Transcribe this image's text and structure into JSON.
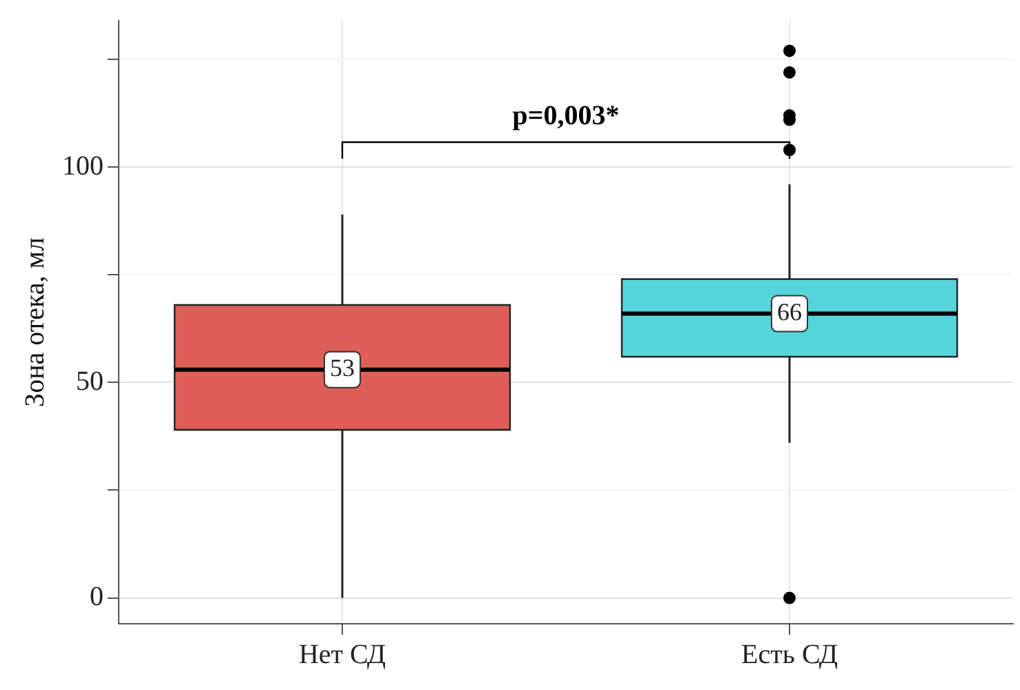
{
  "chart_data": {
    "type": "box",
    "ylabel": "Зона отека, мл",
    "categories": [
      "Нет СД",
      "Есть СД"
    ],
    "colors": [
      "#dd5f57",
      "#56d4dc"
    ],
    "boxes": [
      {
        "low": 0,
        "q1": 39,
        "median": 53,
        "q3": 68,
        "high": 89
      },
      {
        "low": 36,
        "q1": 56,
        "median": 66,
        "q3": 74,
        "high": 96,
        "outliers": [
          127,
          122,
          112,
          111,
          104,
          0
        ]
      }
    ],
    "ylim": [
      -6,
      134
    ],
    "yticks": [
      0,
      {
        "value": 25,
        "label": null
      },
      50,
      {
        "value": 75,
        "label": null
      },
      100,
      {
        "value": 125,
        "label": null
      }
    ],
    "grid": true,
    "legend": false,
    "annotations": [
      {
        "text": "53",
        "x": "Нет СД",
        "y": 53
      },
      {
        "text": "66",
        "x": "Есть СД",
        "y": 66
      },
      "p=0,003*"
    ]
  }
}
